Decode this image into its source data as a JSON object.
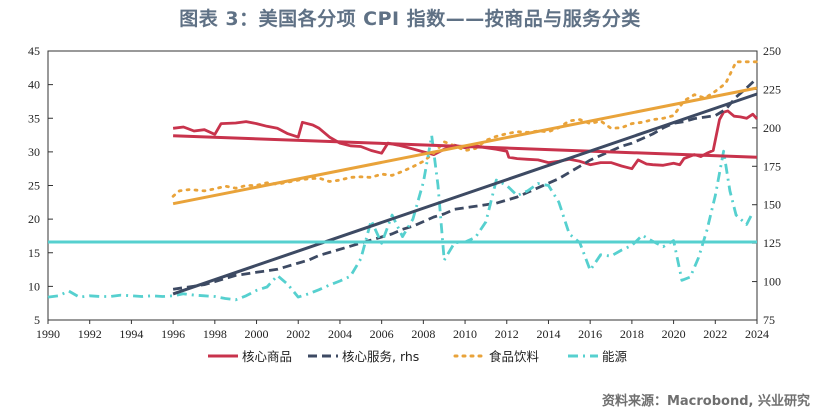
{
  "title": "图表 3：美国各分项 CPI 指数——按商品与服务分类",
  "source": "资料来源：Macrobond, 兴业研究",
  "chart_data": {
    "type": "line",
    "x_ticks": [
      "1990",
      "1992",
      "1994",
      "1996",
      "1998",
      "2000",
      "2002",
      "2004",
      "2006",
      "2008",
      "2010",
      "2012",
      "2014",
      "2016",
      "2018",
      "2020",
      "2022",
      "2024"
    ],
    "xlim": [
      1990,
      2024
    ],
    "left_axis": {
      "ylim": [
        5,
        45
      ],
      "ticks": [
        5,
        10,
        15,
        20,
        25,
        30,
        35,
        40,
        45
      ]
    },
    "right_axis": {
      "ylim": [
        75,
        250
      ],
      "ticks": [
        75,
        100,
        125,
        150,
        175,
        200,
        225,
        250
      ]
    },
    "legend_position": "bottom",
    "series": [
      {
        "name": "核心商品",
        "color": "#c8334c",
        "style": "solid",
        "axis": "left",
        "points": [
          [
            1996.0,
            33.5
          ],
          [
            1996.5,
            33.7
          ],
          [
            1997.0,
            33.1
          ],
          [
            1997.5,
            33.3
          ],
          [
            1998.0,
            32.6
          ],
          [
            1998.3,
            34.2
          ],
          [
            1999.0,
            34.3
          ],
          [
            1999.5,
            34.5
          ],
          [
            2000.0,
            34.2
          ],
          [
            2000.5,
            33.8
          ],
          [
            2001.0,
            33.5
          ],
          [
            2001.5,
            32.7
          ],
          [
            2002.0,
            32.2
          ],
          [
            2002.2,
            34.4
          ],
          [
            2002.7,
            34.0
          ],
          [
            2003.0,
            33.5
          ],
          [
            2003.5,
            32.2
          ],
          [
            2004.0,
            31.3
          ],
          [
            2004.5,
            30.9
          ],
          [
            2005.0,
            30.8
          ],
          [
            2005.5,
            30.2
          ],
          [
            2006.0,
            29.8
          ],
          [
            2006.3,
            31.3
          ],
          [
            2006.8,
            31.0
          ],
          [
            2007.3,
            30.6
          ],
          [
            2008.0,
            30.0
          ],
          [
            2008.5,
            29.6
          ],
          [
            2009.0,
            30.4
          ],
          [
            2009.5,
            31.0
          ],
          [
            2010.0,
            30.6
          ],
          [
            2010.5,
            30.9
          ],
          [
            2011.0,
            30.6
          ],
          [
            2011.5,
            30.4
          ],
          [
            2012.0,
            30.1
          ],
          [
            2012.1,
            29.2
          ],
          [
            2012.5,
            29.0
          ],
          [
            2013.0,
            28.9
          ],
          [
            2013.5,
            28.8
          ],
          [
            2014.0,
            28.4
          ],
          [
            2014.5,
            28.6
          ],
          [
            2015.0,
            28.9
          ],
          [
            2015.5,
            28.6
          ],
          [
            2016.0,
            28.1
          ],
          [
            2016.5,
            28.4
          ],
          [
            2017.0,
            28.4
          ],
          [
            2017.5,
            27.9
          ],
          [
            2018.0,
            27.5
          ],
          [
            2018.3,
            28.8
          ],
          [
            2018.7,
            28.2
          ],
          [
            2019.0,
            28.1
          ],
          [
            2019.5,
            28.0
          ],
          [
            2020.0,
            28.3
          ],
          [
            2020.3,
            28.1
          ],
          [
            2020.5,
            29.0
          ],
          [
            2021.0,
            29.6
          ],
          [
            2021.3,
            29.3
          ],
          [
            2021.6,
            29.8
          ],
          [
            2021.9,
            30.2
          ],
          [
            2022.2,
            34.8
          ],
          [
            2022.4,
            35.9
          ],
          [
            2022.6,
            36.1
          ],
          [
            2022.9,
            35.3
          ],
          [
            2023.2,
            35.2
          ],
          [
            2023.5,
            35.0
          ],
          [
            2023.8,
            35.6
          ],
          [
            2024.0,
            34.9
          ]
        ]
      },
      {
        "name": "核心服务, rhs",
        "color": "#3d4a63",
        "style": "dashed",
        "axis": "right",
        "points": [
          [
            1996.0,
            95
          ],
          [
            1996.5,
            96
          ],
          [
            1997.0,
            97
          ],
          [
            1997.5,
            98
          ],
          [
            1998.0,
            100
          ],
          [
            1998.5,
            102
          ],
          [
            1999.0,
            104
          ],
          [
            1999.5,
            105
          ],
          [
            2000.0,
            106
          ],
          [
            2000.5,
            107
          ],
          [
            2001.0,
            108
          ],
          [
            2001.5,
            110
          ],
          [
            2002.0,
            112
          ],
          [
            2002.5,
            114
          ],
          [
            2003.0,
            117
          ],
          [
            2003.5,
            119
          ],
          [
            2004.0,
            121
          ],
          [
            2004.5,
            123
          ],
          [
            2005.0,
            125
          ],
          [
            2005.5,
            127
          ],
          [
            2006.0,
            129
          ],
          [
            2006.5,
            131
          ],
          [
            2007.0,
            134
          ],
          [
            2007.5,
            136
          ],
          [
            2008.0,
            139
          ],
          [
            2008.5,
            142
          ],
          [
            2009.0,
            144
          ],
          [
            2009.5,
            147
          ],
          [
            2010.0,
            148
          ],
          [
            2010.5,
            149
          ],
          [
            2011.0,
            150
          ],
          [
            2011.5,
            151
          ],
          [
            2012.0,
            153
          ],
          [
            2012.5,
            155
          ],
          [
            2013.0,
            158
          ],
          [
            2013.5,
            161
          ],
          [
            2014.0,
            164
          ],
          [
            2014.5,
            167
          ],
          [
            2015.0,
            171
          ],
          [
            2015.5,
            175
          ],
          [
            2016.0,
            179
          ],
          [
            2016.5,
            182
          ],
          [
            2017.0,
            185
          ],
          [
            2017.5,
            188
          ],
          [
            2018.0,
            190
          ],
          [
            2018.5,
            193
          ],
          [
            2019.0,
            196
          ],
          [
            2019.5,
            200
          ],
          [
            2020.0,
            203
          ],
          [
            2020.5,
            204
          ],
          [
            2021.0,
            206
          ],
          [
            2021.5,
            207
          ],
          [
            2022.0,
            208
          ],
          [
            2022.5,
            212
          ],
          [
            2023.0,
            220
          ],
          [
            2023.5,
            226
          ],
          [
            2023.9,
            231
          ]
        ]
      },
      {
        "name": "食品饮料",
        "color": "#e9a33a",
        "style": "dotted",
        "axis": "left",
        "points": [
          [
            1996.0,
            23.4
          ],
          [
            1996.3,
            24.2
          ],
          [
            1996.8,
            24.4
          ],
          [
            1997.5,
            24.2
          ],
          [
            1998.0,
            24.5
          ],
          [
            1998.5,
            24.9
          ],
          [
            1999.0,
            24.6
          ],
          [
            1999.5,
            25.0
          ],
          [
            2000.0,
            25.0
          ],
          [
            2000.5,
            25.4
          ],
          [
            2001.0,
            25.2
          ],
          [
            2001.5,
            25.5
          ],
          [
            2002.0,
            25.8
          ],
          [
            2002.5,
            26.0
          ],
          [
            2003.0,
            26.1
          ],
          [
            2003.5,
            25.6
          ],
          [
            2004.0,
            25.8
          ],
          [
            2004.5,
            26.2
          ],
          [
            2005.0,
            26.3
          ],
          [
            2005.5,
            26.2
          ],
          [
            2006.0,
            26.7
          ],
          [
            2006.5,
            26.5
          ],
          [
            2007.0,
            27.1
          ],
          [
            2007.5,
            27.8
          ],
          [
            2008.0,
            28.6
          ],
          [
            2008.5,
            29.8
          ],
          [
            2009.0,
            31.5
          ],
          [
            2009.5,
            30.9
          ],
          [
            2010.0,
            30.2
          ],
          [
            2010.5,
            30.5
          ],
          [
            2011.0,
            31.7
          ],
          [
            2011.5,
            32.3
          ],
          [
            2012.0,
            32.7
          ],
          [
            2012.5,
            33.0
          ],
          [
            2013.0,
            32.9
          ],
          [
            2013.5,
            33.1
          ],
          [
            2014.0,
            33.0
          ],
          [
            2014.5,
            33.6
          ],
          [
            2015.0,
            34.6
          ],
          [
            2015.5,
            34.8
          ],
          [
            2016.0,
            34.2
          ],
          [
            2016.5,
            34.6
          ],
          [
            2017.0,
            33.5
          ],
          [
            2017.5,
            33.6
          ],
          [
            2018.0,
            34.2
          ],
          [
            2018.5,
            34.4
          ],
          [
            2019.0,
            34.8
          ],
          [
            2019.5,
            35.0
          ],
          [
            2020.0,
            35.4
          ],
          [
            2020.5,
            37.6
          ],
          [
            2021.0,
            38.5
          ],
          [
            2021.5,
            38.0
          ],
          [
            2022.0,
            39.0
          ],
          [
            2022.5,
            40.2
          ],
          [
            2023.0,
            43.4
          ],
          [
            2023.5,
            43.4
          ],
          [
            2024.0,
            43.4
          ]
        ]
      },
      {
        "name": "能源",
        "color": "#56d0cf",
        "style": "dashdot",
        "axis": "left",
        "points": [
          [
            1990.0,
            8.4
          ],
          [
            1990.5,
            8.6
          ],
          [
            1991.0,
            9.3
          ],
          [
            1991.5,
            8.4
          ],
          [
            1992.0,
            8.6
          ],
          [
            1992.5,
            8.5
          ],
          [
            1993.0,
            8.5
          ],
          [
            1993.5,
            8.7
          ],
          [
            1994.0,
            8.6
          ],
          [
            1994.5,
            8.5
          ],
          [
            1995.0,
            8.6
          ],
          [
            1995.5,
            8.5
          ],
          [
            1996.0,
            8.6
          ],
          [
            1996.5,
            8.9
          ],
          [
            1997.0,
            8.7
          ],
          [
            1997.5,
            8.6
          ],
          [
            1998.0,
            8.5
          ],
          [
            1998.5,
            8.2
          ],
          [
            1999.0,
            8.0
          ],
          [
            1999.5,
            8.6
          ],
          [
            2000.0,
            9.4
          ],
          [
            2000.5,
            9.9
          ],
          [
            2001.0,
            11.6
          ],
          [
            2001.5,
            10.3
          ],
          [
            2002.0,
            8.4
          ],
          [
            2002.5,
            8.9
          ],
          [
            2003.0,
            9.5
          ],
          [
            2003.5,
            10.2
          ],
          [
            2004.0,
            10.8
          ],
          [
            2004.5,
            11.5
          ],
          [
            2005.0,
            14.1
          ],
          [
            2005.5,
            19.8
          ],
          [
            2006.0,
            16.4
          ],
          [
            2006.5,
            20.6
          ],
          [
            2007.0,
            17.4
          ],
          [
            2007.5,
            20.0
          ],
          [
            2008.0,
            25.5
          ],
          [
            2008.4,
            32.4
          ],
          [
            2008.7,
            25.0
          ],
          [
            2009.0,
            13.9
          ],
          [
            2009.5,
            16.5
          ],
          [
            2010.0,
            16.6
          ],
          [
            2010.5,
            17.3
          ],
          [
            2011.0,
            19.6
          ],
          [
            2011.5,
            25.8
          ],
          [
            2012.0,
            25.0
          ],
          [
            2012.5,
            23.5
          ],
          [
            2013.0,
            24.2
          ],
          [
            2013.5,
            25.3
          ],
          [
            2014.0,
            25.0
          ],
          [
            2014.5,
            22.5
          ],
          [
            2015.0,
            17.8
          ],
          [
            2015.5,
            16.5
          ],
          [
            2016.0,
            12.4
          ],
          [
            2016.5,
            14.7
          ],
          [
            2017.0,
            14.5
          ],
          [
            2017.5,
            15.4
          ],
          [
            2018.0,
            16.1
          ],
          [
            2018.5,
            17.6
          ],
          [
            2019.0,
            16.7
          ],
          [
            2019.5,
            15.9
          ],
          [
            2020.0,
            16.8
          ],
          [
            2020.4,
            10.9
          ],
          [
            2020.8,
            11.4
          ],
          [
            2021.2,
            14.3
          ],
          [
            2021.6,
            18.4
          ],
          [
            2022.0,
            23.5
          ],
          [
            2022.4,
            30.1
          ],
          [
            2022.7,
            24.2
          ],
          [
            2023.0,
            20.6
          ],
          [
            2023.5,
            19.2
          ],
          [
            2023.8,
            21.0
          ]
        ]
      },
      {
        "name": "核心商品 trend",
        "color": "#c8334c",
        "style": "solid",
        "axis": "left",
        "points": [
          [
            1996.0,
            32.4
          ],
          [
            2024.0,
            29.2
          ]
        ]
      },
      {
        "name": "核心服务 trend",
        "color": "#3d4a63",
        "style": "solid",
        "axis": "right",
        "points": [
          [
            1996.0,
            92
          ],
          [
            2024.0,
            222
          ]
        ]
      },
      {
        "name": "食品饮料 trend",
        "color": "#e9a33a",
        "style": "solid",
        "axis": "left",
        "points": [
          [
            1996.0,
            22.3
          ],
          [
            2024.0,
            39.5
          ]
        ]
      },
      {
        "name": "能源 trend",
        "color": "#56d0cf",
        "style": "solid",
        "axis": "left",
        "points": [
          [
            1990.0,
            16.6
          ],
          [
            2024.0,
            16.6
          ]
        ]
      }
    ],
    "legend": [
      {
        "label": "核心商品",
        "color": "#c8334c",
        "style": "solid"
      },
      {
        "label": "核心服务, rhs",
        "color": "#3d4a63",
        "style": "dashed"
      },
      {
        "label": "食品饮料",
        "color": "#e9a33a",
        "style": "dotted"
      },
      {
        "label": "能源",
        "color": "#56d0cf",
        "style": "dashdot"
      }
    ]
  }
}
